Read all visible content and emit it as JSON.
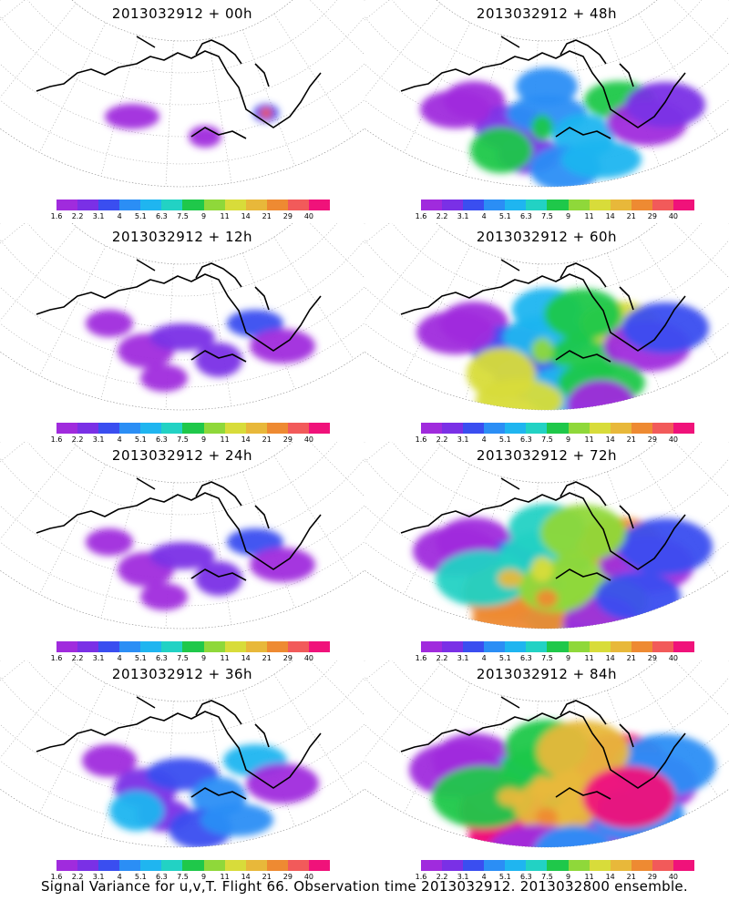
{
  "panels": [
    {
      "title": "2013032912 + 00h",
      "intensity": 0
    },
    {
      "title": "2013032912 + 48h",
      "intensity": 3
    },
    {
      "title": "2013032912 + 12h",
      "intensity": 1
    },
    {
      "title": "2013032912 + 60h",
      "intensity": 4
    },
    {
      "title": "2013032912 + 24h",
      "intensity": 1
    },
    {
      "title": "2013032912 + 72h",
      "intensity": 5
    },
    {
      "title": "2013032912 + 36h",
      "intensity": 2
    },
    {
      "title": "2013032912 + 84h",
      "intensity": 6
    }
  ],
  "colorbar": {
    "labels": [
      "1.6",
      "2.2",
      "3.1",
      "4",
      "5.1",
      "6.3",
      "7.5",
      "9",
      "11",
      "14",
      "21",
      "29",
      "40"
    ],
    "colors": [
      "#a02bdd",
      "#7a30e6",
      "#3a4ef0",
      "#2b8ef5",
      "#1fb5f0",
      "#22d2c4",
      "#1fc84a",
      "#8fd83a",
      "#d8dc3a",
      "#e8b83a",
      "#ee8a32",
      "#f25a5a",
      "#f0127a"
    ]
  },
  "caption": "Signal Variance for u,v,T. Flight 66. Observation time 2013032912. 2013032800 ensemble."
}
